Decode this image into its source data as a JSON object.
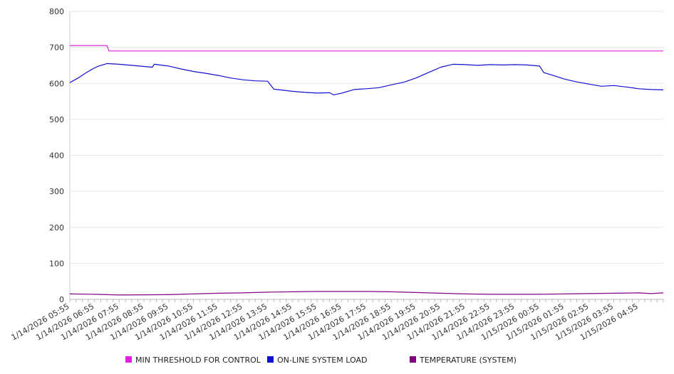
{
  "chart_data": {
    "type": "line",
    "title": "",
    "xlabel": "",
    "ylabel": "",
    "ylim": [
      0,
      800
    ],
    "yticks": [
      0,
      100,
      200,
      300,
      400,
      500,
      600,
      700,
      800
    ],
    "grid": true,
    "legend_position": "bottom",
    "categories": [
      "1/14/2026 05:55",
      "1/14/2026 06:55",
      "1/14/2026 07:55",
      "1/14/2026 08:55",
      "1/14/2026 09:55",
      "1/14/2026 10:55",
      "1/14/2026 11:55",
      "1/14/2026 12:55",
      "1/14/2026 13:55",
      "1/14/2026 14:55",
      "1/14/2026 15:55",
      "1/14/2026 16:55",
      "1/14/2026 17:55",
      "1/14/2026 18:55",
      "1/14/2026 19:55",
      "1/14/2026 20:55",
      "1/14/2026 21:55",
      "1/14/2026 22:55",
      "1/14/2026 23:55",
      "1/15/2026 00:55",
      "1/15/2026 01:55",
      "1/15/2026 02:55",
      "1/15/2026 03:55",
      "1/15/2026 04:55"
    ],
    "x_end": "1/15/2026 05:55",
    "series": [
      {
        "name": "MIN THRESHOLD FOR CONTROL",
        "color": "#e020e0",
        "points": [
          [
            "1/14/2026 05:55",
            705
          ],
          [
            "1/14/2026 07:25",
            705
          ],
          [
            "1/14/2026 07:30",
            690
          ],
          [
            "1/15/2026 05:55",
            690
          ]
        ]
      },
      {
        "name": "ON-LINE SYSTEM LOAD",
        "color": "#1010d0",
        "points": [
          [
            "1/14/2026 05:55",
            602
          ],
          [
            "1/14/2026 06:15",
            615
          ],
          [
            "1/14/2026 06:35",
            630
          ],
          [
            "1/14/2026 06:55",
            643
          ],
          [
            "1/14/2026 07:05",
            648
          ],
          [
            "1/14/2026 07:25",
            655
          ],
          [
            "1/14/2026 07:55",
            653
          ],
          [
            "1/14/2026 08:25",
            650
          ],
          [
            "1/14/2026 08:55",
            647
          ],
          [
            "1/14/2026 09:15",
            645
          ],
          [
            "1/14/2026 09:20",
            653
          ],
          [
            "1/14/2026 09:55",
            648
          ],
          [
            "1/14/2026 10:25",
            640
          ],
          [
            "1/14/2026 10:55",
            633
          ],
          [
            "1/14/2026 11:25",
            628
          ],
          [
            "1/14/2026 11:55",
            622
          ],
          [
            "1/14/2026 12:25",
            615
          ],
          [
            "1/14/2026 12:55",
            610
          ],
          [
            "1/14/2026 13:25",
            607
          ],
          [
            "1/14/2026 13:55",
            606
          ],
          [
            "1/14/2026 14:10",
            584
          ],
          [
            "1/14/2026 14:55",
            578
          ],
          [
            "1/14/2026 15:25",
            575
          ],
          [
            "1/14/2026 15:55",
            573
          ],
          [
            "1/14/2026 16:25",
            574
          ],
          [
            "1/14/2026 16:35",
            568
          ],
          [
            "1/14/2026 16:55",
            573
          ],
          [
            "1/14/2026 17:25",
            583
          ],
          [
            "1/14/2026 17:55",
            585
          ],
          [
            "1/14/2026 18:25",
            588
          ],
          [
            "1/14/2026 18:55",
            596
          ],
          [
            "1/14/2026 19:25",
            603
          ],
          [
            "1/14/2026 19:55",
            615
          ],
          [
            "1/14/2026 20:25",
            630
          ],
          [
            "1/14/2026 20:55",
            645
          ],
          [
            "1/14/2026 21:25",
            653
          ],
          [
            "1/14/2026 21:55",
            652
          ],
          [
            "1/14/2026 22:25",
            650
          ],
          [
            "1/14/2026 22:55",
            652
          ],
          [
            "1/14/2026 23:25",
            651
          ],
          [
            "1/14/2026 23:55",
            652
          ],
          [
            "1/15/2026 00:25",
            651
          ],
          [
            "1/15/2026 00:55",
            648
          ],
          [
            "1/15/2026 01:05",
            630
          ],
          [
            "1/15/2026 01:25",
            623
          ],
          [
            "1/15/2026 01:55",
            612
          ],
          [
            "1/15/2026 02:25",
            604
          ],
          [
            "1/15/2026 02:55",
            598
          ],
          [
            "1/15/2026 03:25",
            592
          ],
          [
            "1/15/2026 03:55",
            594
          ],
          [
            "1/15/2026 04:25",
            590
          ],
          [
            "1/15/2026 04:55",
            585
          ],
          [
            "1/15/2026 05:25",
            583
          ],
          [
            "1/15/2026 05:55",
            582
          ]
        ]
      },
      {
        "name": "TEMPERATURE (SYSTEM)",
        "color": "#800080",
        "points": [
          [
            "1/14/2026 05:55",
            15
          ],
          [
            "1/14/2026 06:55",
            14
          ],
          [
            "1/14/2026 07:55",
            12
          ],
          [
            "1/14/2026 09:55",
            13
          ],
          [
            "1/14/2026 10:55",
            15
          ],
          [
            "1/14/2026 11:55",
            17
          ],
          [
            "1/14/2026 12:55",
            18
          ],
          [
            "1/14/2026 13:55",
            20
          ],
          [
            "1/14/2026 14:55",
            21
          ],
          [
            "1/14/2026 15:55",
            22
          ],
          [
            "1/14/2026 16:55",
            22
          ],
          [
            "1/14/2026 17:55",
            22
          ],
          [
            "1/14/2026 18:55",
            21
          ],
          [
            "1/14/2026 19:55",
            19
          ],
          [
            "1/14/2026 20:55",
            17
          ],
          [
            "1/14/2026 21:55",
            15
          ],
          [
            "1/14/2026 22:55",
            14
          ],
          [
            "1/14/2026 23:55",
            14
          ],
          [
            "1/15/2026 00:55",
            14
          ],
          [
            "1/15/2026 01:55",
            15
          ],
          [
            "1/15/2026 02:55",
            16
          ],
          [
            "1/15/2026 03:55",
            17
          ],
          [
            "1/15/2026 04:55",
            18
          ],
          [
            "1/15/2026 05:25",
            16
          ],
          [
            "1/15/2026 05:55",
            18
          ]
        ]
      }
    ]
  }
}
